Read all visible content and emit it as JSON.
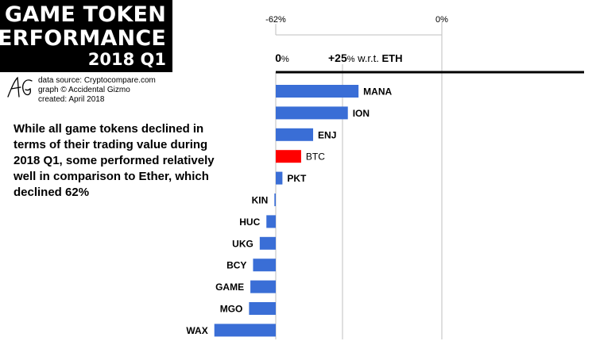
{
  "header": {
    "title_line1": "GAME TOKEN",
    "title_line2": "PERFORMANCE",
    "title_line3": "2018 Q1"
  },
  "credits": {
    "logo_text": "AG",
    "source": "data source: Cryptocompare.com",
    "graph": "graph © Accidental Gizmo",
    "created": "created: April 2018"
  },
  "annotation": "While all game tokens declined in terms of their trading value during 2018 Q1, some performed relatively well in comparison to Ether, which declined 62%",
  "chart_data": {
    "type": "bar",
    "orientation": "horizontal",
    "top_axis": {
      "left_label": "-62%",
      "right_label": "0%",
      "range": [
        -62,
        0
      ]
    },
    "bottom_axis": {
      "zero_label": "0%",
      "mark_label_plus": "+25",
      "mark_label_pct": "%",
      "mark_label_text": " w.r.t. ",
      "mark_label_bold": "ETH",
      "range": [
        -9,
        62
      ]
    },
    "categories": [
      "MANA",
      "ION",
      "ENJ",
      "BTC",
      "PKT",
      "KIN",
      "HUC",
      "UKG",
      "BCY",
      "GAME",
      "MGO",
      "WAX"
    ],
    "values": [
      31,
      27,
      14,
      9.5,
      2.5,
      -0.5,
      -3.5,
      -6,
      -8.5,
      -9.5,
      -10,
      -23
    ],
    "highlight": "BTC",
    "colors": {
      "bar": "#3a6ed6",
      "highlight": "#ff0000",
      "axis": "#000000",
      "grid": "#bfbfbf"
    },
    "grid": true,
    "grid_lines": [
      0,
      25,
      62
    ]
  }
}
